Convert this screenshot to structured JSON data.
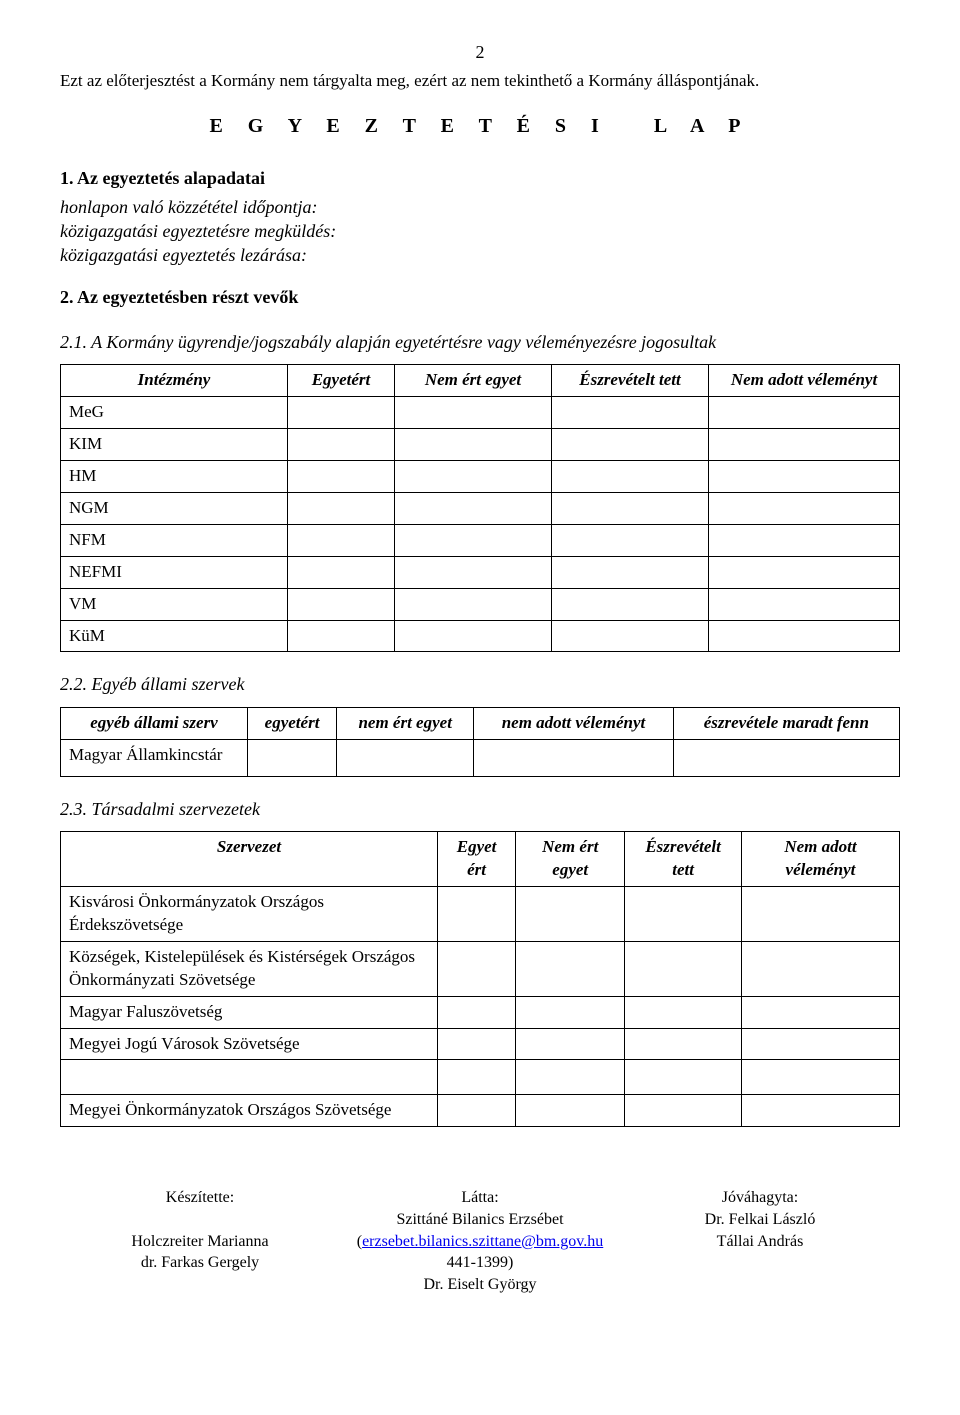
{
  "page_number": "2",
  "disclaimer": "Ezt az előterjesztést a Kormány nem tárgyalta meg, ezért az nem tekinthető a Kormány álláspontjának.",
  "main_title": "E G Y E Z T E T É S I   L A P",
  "section1_heading": "1. Az egyeztetés alapadatai",
  "s1_lines": {
    "l1": "honlapon való közzététel időpontja:",
    "l2": "közigazgatási egyeztetésre megküldés:",
    "l3": "közigazgatási egyeztetés lezárása:"
  },
  "section2_heading": "2. Az egyeztetésben részt vevők",
  "sub21": "2.1. A Kormány ügyrendje/jogszabály alapján egyetértésre vagy véleményezésre jogosultak",
  "table1": {
    "headers": {
      "h0": "Intézmény",
      "h1": "Egyetért",
      "h2": "Nem ért egyet",
      "h3": "Észrevételt tett",
      "h4": "Nem adott véleményt"
    },
    "rows": [
      "MeG",
      "KIM",
      "HM",
      "NGM",
      "NFM",
      "NEFMI",
      "VM",
      "KüM"
    ]
  },
  "sub22": "2.2. Egyéb állami szervek",
  "table2": {
    "headers": {
      "h0": "egyéb állami szerv",
      "h1": "egyetért",
      "h2": "nem ért egyet",
      "h3": "nem adott véleményt",
      "h4": "észrevétele maradt fenn"
    },
    "row1": "Magyar Államkincstár"
  },
  "sub23": "2.3. Társadalmi szervezetek",
  "table3": {
    "headers": {
      "h0": "Szervezet",
      "h1": "Egyet ért",
      "h2": "Nem ért egyet",
      "h3": "Észrevételt tett",
      "h4": "Nem adott véleményt"
    },
    "rows": [
      "Kisvárosi Önkormányzatok Országos Érdekszövetsége",
      "Községek, Kistelepülések és Kistérségek Országos Önkormányzati Szövetsége",
      "Magyar Faluszövetség",
      "Megyei Jogú Városok Szövetsége"
    ],
    "row_gap": "",
    "row_after": "Megyei Önkormányzatok Országos Szövetsége"
  },
  "footer": {
    "left": {
      "label": "Készítette:",
      "blank": "",
      "name1": "Holczreiter Marianna",
      "name2": "dr. Farkas Gergely"
    },
    "center": {
      "label": "Látta:",
      "name": "Szittáné Bilanics Erzsébet",
      "email_open": "(",
      "email": "erzsebet.bilanics.szittane@bm.gov.hu",
      "phone": "441-1399)",
      "name2": "Dr. Eiselt György"
    },
    "right": {
      "label": "Jóváhagyta:",
      "name1": "Dr. Felkai László",
      "name2": "Tállai András"
    }
  }
}
